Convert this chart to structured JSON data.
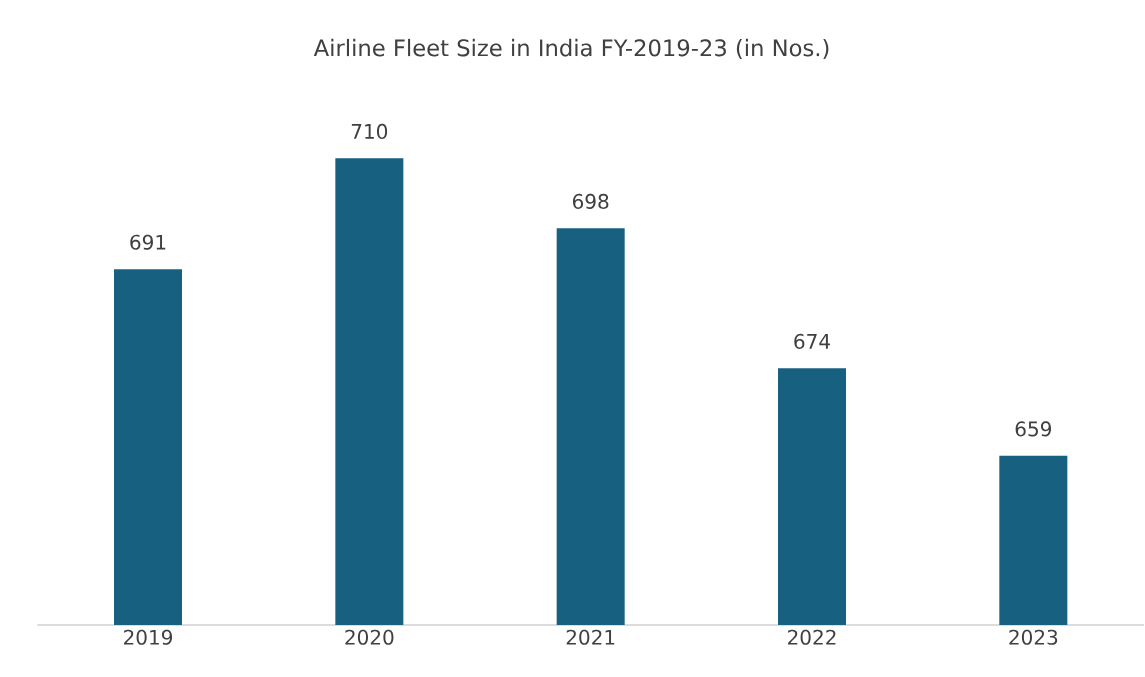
{
  "chart_data": {
    "type": "bar",
    "title": "Airline Fleet Size in India FY-2019-23 (in Nos.)",
    "categories": [
      "2019",
      "2020",
      "2021",
      "2022",
      "2023"
    ],
    "values": [
      691,
      710,
      698,
      674,
      659
    ],
    "color": "#17607f",
    "ylim": [
      630,
      710
    ],
    "data_labels": true,
    "tick_labels": "x",
    "grid": false
  }
}
